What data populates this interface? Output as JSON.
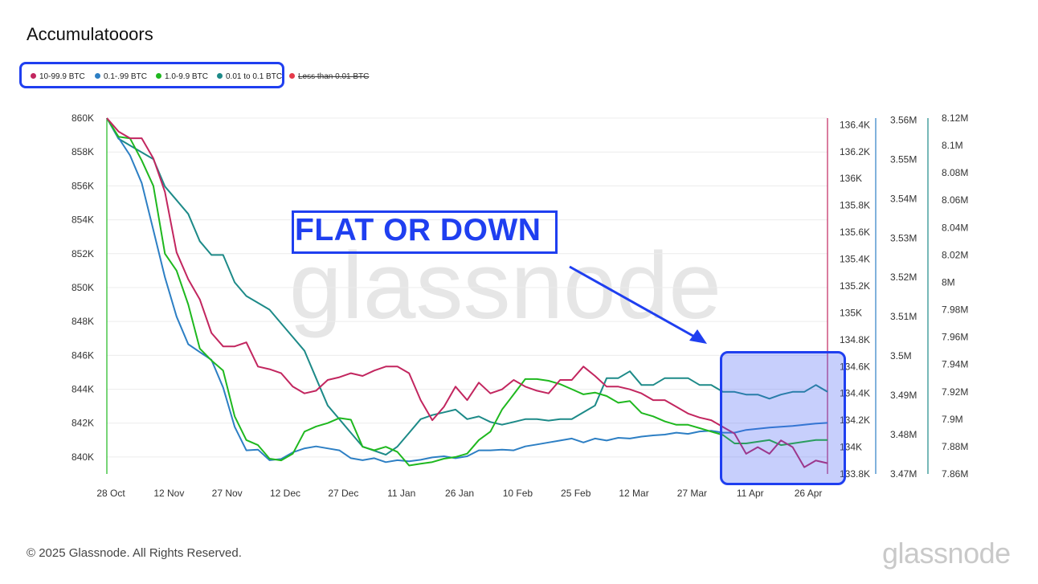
{
  "title": "Accumulatooors",
  "legend": [
    {
      "label": "10-99.9 BTC",
      "color": "#c2265f",
      "enabled": true
    },
    {
      "label": "0.1-.99 BTC",
      "color": "#2d7fc4",
      "enabled": true
    },
    {
      "label": "1.0-9.9 BTC",
      "color": "#1fb81f",
      "enabled": true
    },
    {
      "label": "0.01 to 0.1 BTC",
      "color": "#1d8a88",
      "enabled": true
    },
    {
      "label": "Less than 0.01 BTC",
      "color": "#e53a4a",
      "enabled": false
    }
  ],
  "annotation": {
    "callout": "FLAT OR DOWN"
  },
  "watermark": "glassnode",
  "footer": {
    "copyright": "© 2025 Glassnode. All Rights Reserved.",
    "brand": "glassnode"
  },
  "chart_data": {
    "type": "line",
    "x_tick_labels": [
      "28 Oct",
      "12 Nov",
      "27 Nov",
      "12 Dec",
      "27 Dec",
      "11 Jan",
      "26 Jan",
      "10 Feb",
      "25 Feb",
      "12 Mar",
      "27 Mar",
      "11 Apr",
      "26 Apr"
    ],
    "x_range": [
      "2024-10-28",
      "2025-05-01"
    ],
    "axes": {
      "left": {
        "ticks": [
          "860K",
          "858K",
          "856K",
          "854K",
          "852K",
          "850K",
          "848K",
          "846K",
          "844K",
          "842K",
          "840K"
        ],
        "range": [
          839000,
          860000
        ],
        "color": "#1fb81f"
      },
      "right1": {
        "ticks": [
          "136.4K",
          "136.2K",
          "136K",
          "135.8K",
          "135.6K",
          "135.4K",
          "135.2K",
          "135K",
          "134.8K",
          "134.6K",
          "134.4K",
          "134.2K",
          "134K",
          "133.8K"
        ],
        "range": [
          133.8,
          136.45
        ],
        "color": "#c2265f"
      },
      "right2": {
        "ticks": [
          "3.56M",
          "3.55M",
          "3.54M",
          "3.53M",
          "3.52M",
          "3.51M",
          "3.5M",
          "3.49M",
          "3.48M",
          "3.47M"
        ],
        "range": [
          3.47,
          3.5605
        ],
        "color": "#2d7fc4"
      },
      "right3": {
        "ticks": [
          "8.12M",
          "8.1M",
          "8.08M",
          "8.06M",
          "8.04M",
          "8.02M",
          "8M",
          "7.98M",
          "7.96M",
          "7.94M",
          "7.92M",
          "7.9M",
          "7.88M",
          "7.86M"
        ],
        "range": [
          7.86,
          8.12
        ],
        "color": "#1d8a88"
      }
    },
    "series": [
      {
        "name": "10-99.9 BTC",
        "color": "#c2265f",
        "axis": "right1",
        "unit": "K",
        "x": [
          0,
          3,
          6,
          9,
          12,
          15,
          18,
          21,
          24,
          27,
          30,
          33,
          36,
          39,
          42,
          45,
          48,
          51,
          54,
          57,
          60,
          63,
          66,
          69,
          72,
          75,
          78,
          81,
          84,
          87,
          90,
          93,
          96,
          99,
          102,
          105,
          108,
          111,
          114,
          117,
          120,
          123,
          126,
          129,
          132,
          135,
          138,
          141,
          144,
          147,
          150,
          153,
          156,
          159,
          162,
          165,
          168,
          171,
          174,
          177,
          180,
          183,
          186
        ],
        "values": [
          136.45,
          136.35,
          136.3,
          136.3,
          136.15,
          135.9,
          135.45,
          135.25,
          135.1,
          134.85,
          134.75,
          134.75,
          134.78,
          134.6,
          134.58,
          134.55,
          134.45,
          134.4,
          134.42,
          134.5,
          134.52,
          134.55,
          134.53,
          134.57,
          134.6,
          134.6,
          134.55,
          134.35,
          134.2,
          134.3,
          134.45,
          134.35,
          134.48,
          134.4,
          134.43,
          134.5,
          134.45,
          134.42,
          134.4,
          134.5,
          134.5,
          134.6,
          134.53,
          134.45,
          134.45,
          134.43,
          134.4,
          134.35,
          134.35,
          134.3,
          134.25,
          134.22,
          134.2,
          134.15,
          134.1,
          133.95,
          134.0,
          133.95,
          134.05,
          134.0,
          133.85,
          133.9,
          133.88
        ]
      },
      {
        "name": "0.1-.99 BTC",
        "color": "#2d7fc4",
        "axis": "right2",
        "unit": "M",
        "x": [
          0,
          3,
          6,
          9,
          12,
          15,
          18,
          21,
          24,
          27,
          30,
          33,
          36,
          39,
          42,
          45,
          48,
          51,
          54,
          57,
          60,
          63,
          66,
          69,
          72,
          75,
          78,
          81,
          84,
          87,
          90,
          93,
          96,
          99,
          102,
          105,
          108,
          111,
          114,
          117,
          120,
          123,
          126,
          129,
          132,
          135,
          138,
          141,
          144,
          147,
          150,
          153,
          156,
          159,
          162,
          165,
          168,
          171,
          174,
          177,
          180,
          183,
          186
        ],
        "values": [
          3.5605,
          3.5555,
          3.551,
          3.544,
          3.532,
          3.52,
          3.51,
          3.503,
          3.501,
          3.499,
          3.492,
          3.482,
          3.476,
          3.4762,
          3.4735,
          3.4738,
          3.4755,
          3.4765,
          3.477,
          3.4765,
          3.476,
          3.474,
          3.4735,
          3.474,
          3.473,
          3.4735,
          3.4732,
          3.4736,
          3.4742,
          3.4745,
          3.474,
          3.4745,
          3.476,
          3.476,
          3.4762,
          3.476,
          3.477,
          3.4775,
          3.478,
          3.4785,
          3.479,
          3.478,
          3.479,
          3.4785,
          3.4792,
          3.479,
          3.4795,
          3.4798,
          3.48,
          3.4805,
          3.4802,
          3.4808,
          3.481,
          3.4805,
          3.4805,
          3.4812,
          3.4815,
          3.4818,
          3.482,
          3.4822,
          3.4825,
          3.4828,
          3.483
        ]
      },
      {
        "name": "1.0-9.9 BTC",
        "color": "#1fb81f",
        "axis": "left",
        "unit": "K",
        "x": [
          0,
          3,
          6,
          9,
          12,
          15,
          18,
          21,
          24,
          27,
          30,
          33,
          36,
          39,
          42,
          45,
          48,
          51,
          54,
          57,
          60,
          63,
          66,
          69,
          72,
          75,
          78,
          81,
          84,
          87,
          90,
          93,
          96,
          99,
          102,
          105,
          108,
          111,
          114,
          117,
          120,
          123,
          126,
          129,
          132,
          135,
          138,
          141,
          144,
          147,
          150,
          153,
          156,
          159,
          162,
          165,
          168,
          171,
          174,
          177,
          180,
          183,
          186
        ],
        "values": [
          860.0,
          858.9,
          858.8,
          857.5,
          856.0,
          852.0,
          851.0,
          849.0,
          846.4,
          845.7,
          845.1,
          842.4,
          841.0,
          840.7,
          839.9,
          839.8,
          840.2,
          841.5,
          841.8,
          842.0,
          842.3,
          842.2,
          840.6,
          840.4,
          840.6,
          840.3,
          839.5,
          839.6,
          839.7,
          839.9,
          840.0,
          840.2,
          841.0,
          841.5,
          842.8,
          843.7,
          844.6,
          844.6,
          844.5,
          844.3,
          844.0,
          843.7,
          843.8,
          843.6,
          843.2,
          843.3,
          842.6,
          842.4,
          842.1,
          841.9,
          841.9,
          841.7,
          841.5,
          841.3,
          840.8,
          840.8,
          840.9,
          841.0,
          840.7,
          840.8,
          840.9,
          841.0,
          841.0
        ]
      },
      {
        "name": "0.01 to 0.1 BTC",
        "color": "#1d8a88",
        "axis": "right3",
        "unit": "M",
        "x": [
          0,
          3,
          6,
          9,
          12,
          15,
          18,
          21,
          24,
          27,
          30,
          33,
          36,
          39,
          42,
          45,
          48,
          51,
          54,
          57,
          60,
          63,
          66,
          69,
          72,
          75,
          78,
          81,
          84,
          87,
          90,
          93,
          96,
          99,
          102,
          105,
          108,
          111,
          114,
          117,
          120,
          123,
          126,
          129,
          132,
          135,
          138,
          141,
          144,
          147,
          150,
          153,
          156,
          159,
          162,
          165,
          168,
          171,
          174,
          177,
          180,
          183,
          186
        ],
        "values": [
          8.12,
          8.105,
          8.1,
          8.095,
          8.09,
          8.07,
          8.06,
          8.05,
          8.03,
          8.02,
          8.02,
          8.0,
          7.99,
          7.985,
          7.98,
          7.97,
          7.96,
          7.95,
          7.93,
          7.91,
          7.9,
          7.89,
          7.88,
          7.877,
          7.874,
          7.88,
          7.89,
          7.9,
          7.903,
          7.905,
          7.907,
          7.9,
          7.902,
          7.898,
          7.896,
          7.898,
          7.9,
          7.9,
          7.899,
          7.9,
          7.9,
          7.905,
          7.91,
          7.93,
          7.93,
          7.935,
          7.925,
          7.925,
          7.93,
          7.93,
          7.93,
          7.925,
          7.925,
          7.92,
          7.92,
          7.918,
          7.918,
          7.915,
          7.918,
          7.92,
          7.92,
          7.925,
          7.92
        ]
      }
    ]
  }
}
